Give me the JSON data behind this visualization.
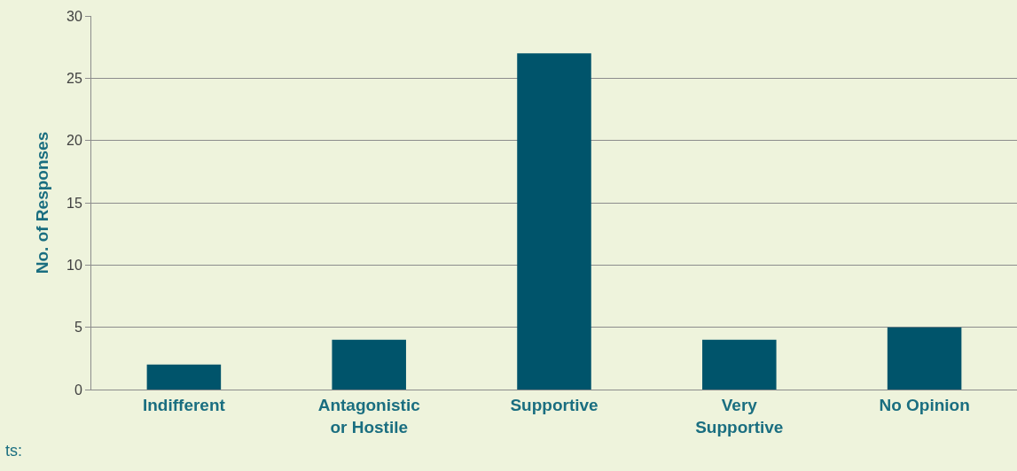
{
  "chart_data": {
    "type": "bar",
    "ylabel": "No. of Responses",
    "categories": [
      "Indifferent",
      "Antagonistic\nor Hostile",
      "Supportive",
      "Very\nSupportive",
      "No Opinion"
    ],
    "values": [
      2,
      4,
      27,
      4,
      5
    ],
    "color": "#00546b",
    "ylim": [
      0,
      30
    ],
    "yticks": [
      0,
      5,
      10,
      15,
      20,
      25,
      30
    ],
    "grid": "y",
    "annotations": [
      "ts:"
    ]
  }
}
